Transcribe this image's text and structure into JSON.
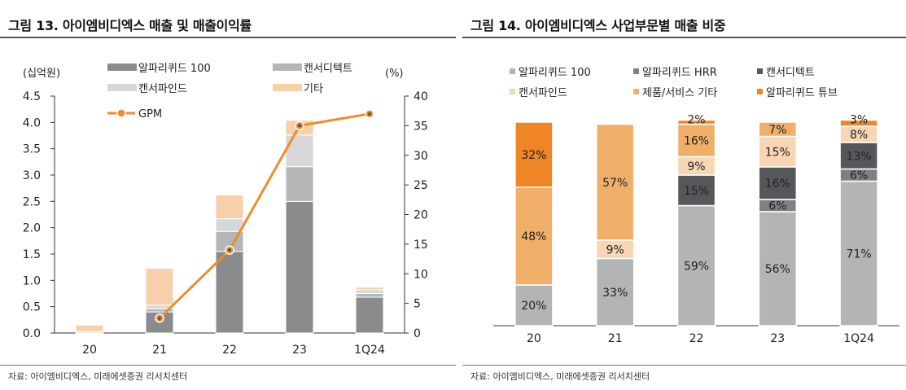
{
  "left": {
    "title": "그림 13. 아이엠비디엑스 매출 및 매출이익률",
    "source": "자료: 아이엠비디엑스, 미래에셋증권 리서치센터",
    "colors": {
      "alpha100": "#8a8b8d",
      "cancer_detect": "#b5b6b8",
      "cancer_find": "#d6d7d9",
      "other": "#f7cfa8",
      "gpm": "#ef8b2c"
    },
    "chart_data": {
      "type": "bar",
      "stacked": true,
      "categories": [
        "20",
        "21",
        "22",
        "23",
        "1Q24"
      ],
      "series": [
        {
          "name": "알파리퀴드 100",
          "key": "alpha100",
          "values": [
            0,
            0.4,
            1.55,
            2.5,
            0.68
          ]
        },
        {
          "name": "캔서디텍트",
          "key": "cancer_detect",
          "values": [
            0,
            0.06,
            0.38,
            0.66,
            0.07
          ]
        },
        {
          "name": "캔서파인드",
          "key": "cancer_find",
          "values": [
            0.03,
            0.07,
            0.24,
            0.6,
            0.07
          ]
        },
        {
          "name": "기타",
          "key": "other",
          "values": [
            0.12,
            0.7,
            0.45,
            0.28,
            0.05
          ]
        }
      ],
      "line": {
        "name": "GPM",
        "axis": "right",
        "values": [
          null,
          2.5,
          14,
          35,
          37
        ]
      },
      "ylabel_left": "(십억원)",
      "ylabel_right": "(%)",
      "ylim_left": [
        0,
        4.5
      ],
      "ylim_right": [
        0,
        40
      ],
      "yticks_left": [
        "0.0",
        "0.5",
        "1.0",
        "1.5",
        "2.0",
        "2.5",
        "3.0",
        "3.5",
        "4.0",
        "4.5"
      ],
      "yticks_right": [
        "0",
        "5",
        "10",
        "15",
        "20",
        "25",
        "30",
        "35",
        "40"
      ],
      "legend": [
        "알파리퀴드 100",
        "캔서디텍트",
        "캔서파인드",
        "기타",
        "GPM"
      ]
    }
  },
  "right": {
    "title": "그림 14. 아이엠비디엑스 사업부문별 매출 비중",
    "source": "자료: 아이엠비디엑스, 미래에셋증권 리서치센터",
    "colors": {
      "alpha100": "#b3b4b6",
      "alphaHRR": "#7f8083",
      "cancer_detect": "#55575a",
      "cancer_find": "#f8d6b4",
      "service": "#efaf68",
      "tube": "#f08526"
    },
    "chart_data": {
      "type": "bar",
      "stacked": true,
      "percent": true,
      "categories": [
        "20",
        "21",
        "22",
        "23",
        "1Q24"
      ],
      "series": [
        {
          "name": "알파리퀴드 100",
          "key": "alpha100",
          "values": [
            20,
            33,
            59,
            56,
            71
          ]
        },
        {
          "name": "알파리퀴드 HRR",
          "key": "alphaHRR",
          "values": [
            0,
            0,
            0,
            6,
            6
          ]
        },
        {
          "name": "캔서디텍트",
          "key": "cancer_detect",
          "values": [
            0,
            0,
            15,
            16,
            13
          ]
        },
        {
          "name": "캔서파인드",
          "key": "cancer_find",
          "values": [
            0,
            9,
            9,
            15,
            8
          ]
        },
        {
          "name": "제품/서비스 기타",
          "key": "service",
          "values": [
            48,
            57,
            16,
            7,
            0
          ]
        },
        {
          "name": "알파리퀴드 튜브",
          "key": "tube",
          "values": [
            32,
            0,
            2,
            0,
            3
          ]
        }
      ],
      "labels": [
        [
          "20%",
          "",
          "",
          "",
          "48%",
          "32%"
        ],
        [
          "33%",
          "",
          "",
          "9%",
          "57%",
          ""
        ],
        [
          "59%",
          "",
          "15%",
          "9%",
          "16%",
          "2%"
        ],
        [
          "56%",
          "6%",
          "16%",
          "15%",
          "7%",
          ""
        ],
        [
          "71%",
          "6%",
          "13%",
          "8%",
          "",
          "3%"
        ]
      ],
      "legend": [
        "알파리퀴드 100",
        "알파리퀴드 HRR",
        "캔서디텍트",
        "캔서파인드",
        "제품/서비스 기타",
        "알파리퀴드 튜브"
      ]
    }
  }
}
